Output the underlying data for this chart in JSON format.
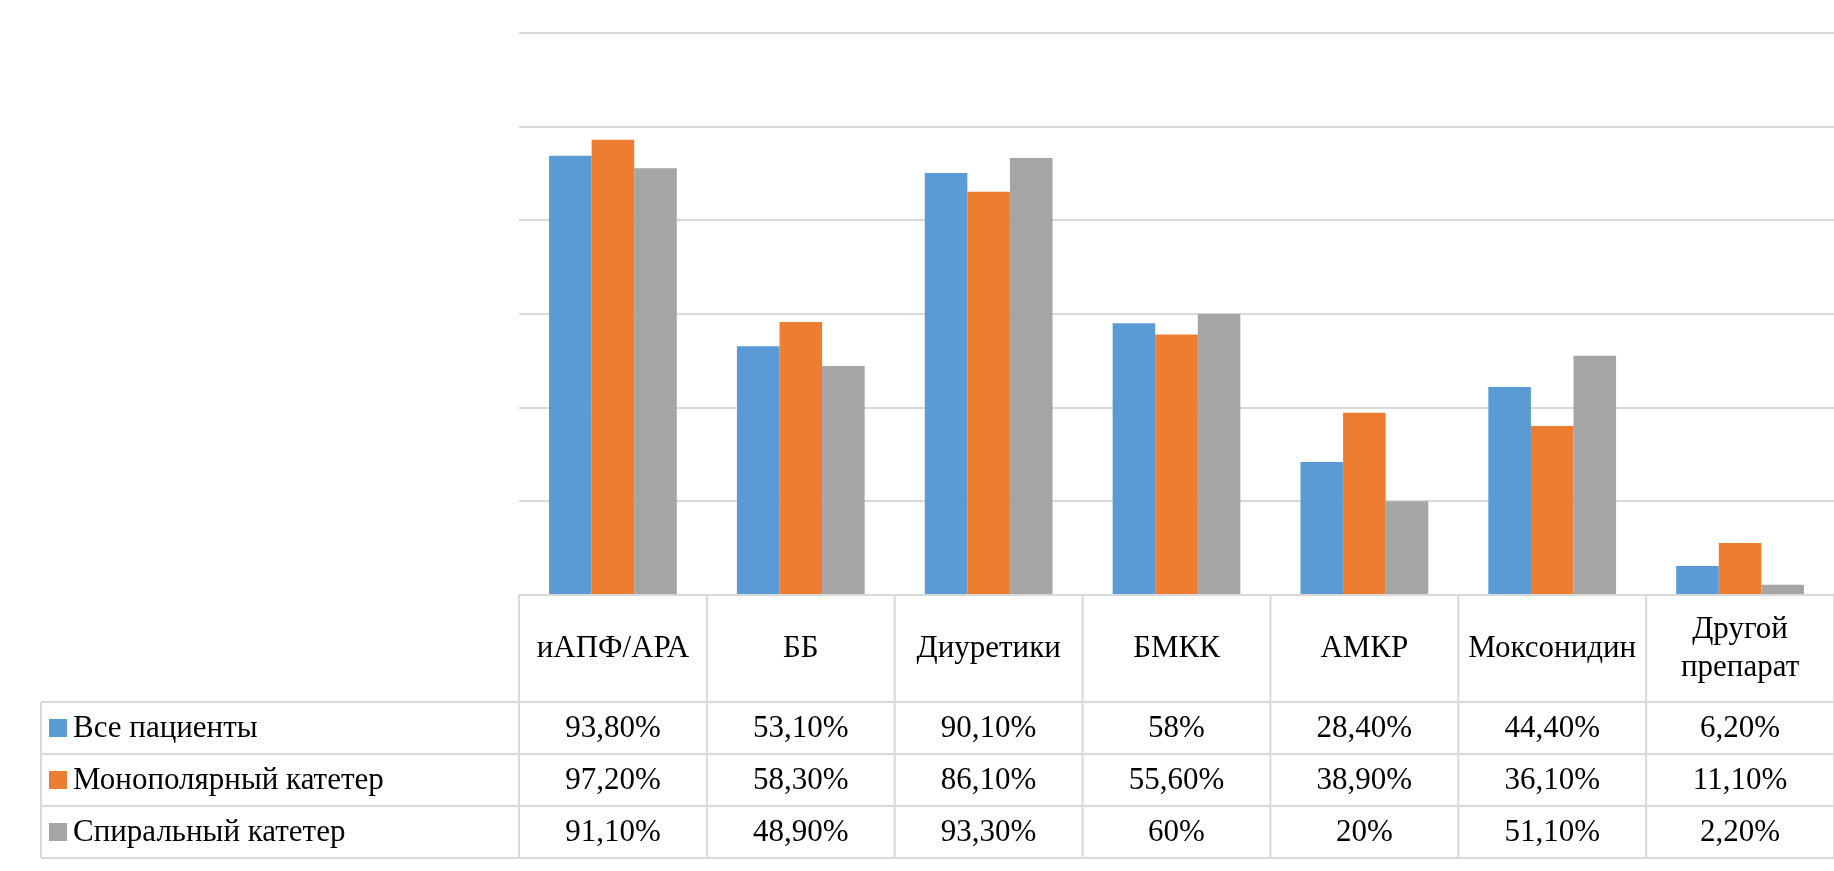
{
  "chart_data": {
    "type": "bar",
    "categories": [
      "иАПФ/АРА",
      "ББ",
      "Диуретики",
      "БМКК",
      "АМКР",
      "Моксонидин",
      "Другой препарат"
    ],
    "series": [
      {
        "name": "Все пациенты",
        "color": "#5b9bd5",
        "values": [
          93.8,
          53.1,
          90.1,
          58,
          28.4,
          44.4,
          6.2
        ],
        "value_labels": [
          "93,80%",
          "53,10%",
          "90,10%",
          "58%",
          "28,40%",
          "44,40%",
          "6,20%"
        ]
      },
      {
        "name": "Монополярный катетер",
        "color": "#ed7d31",
        "values": [
          97.2,
          58.3,
          86.1,
          55.6,
          38.9,
          36.1,
          11.1
        ],
        "value_labels": [
          "97,20%",
          "58,30%",
          "86,10%",
          "55,60%",
          "38,90%",
          "36,10%",
          "11,10%"
        ]
      },
      {
        "name": "Спиральный катетер",
        "color": "#a5a5a5",
        "values": [
          91.1,
          48.9,
          93.3,
          60,
          20,
          51.1,
          2.2
        ],
        "value_labels": [
          "91,10%",
          "48,90%",
          "93,30%",
          "60%",
          "20%",
          "51,10%",
          "2,20%"
        ]
      }
    ],
    "ylim": [
      0,
      120
    ],
    "yticks": [
      {
        "value": 0,
        "label": null
      },
      {
        "value": 20,
        "label": null
      },
      {
        "value": 40,
        "label": null
      },
      {
        "value": 60,
        "label": null
      },
      {
        "value": 80,
        "label": null
      },
      {
        "value": 100,
        "label": null
      },
      {
        "value": 120,
        "label": null
      }
    ],
    "grid": "y",
    "legend": "bottom",
    "tick_labels": "x"
  }
}
